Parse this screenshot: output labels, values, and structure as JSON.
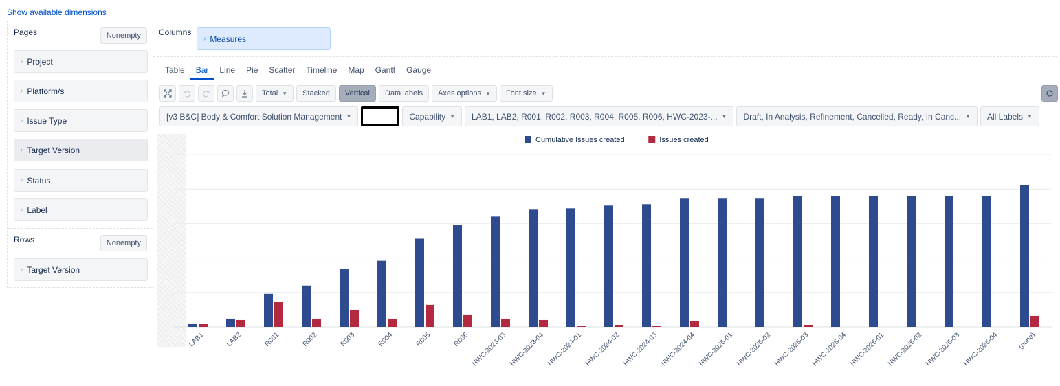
{
  "top_link": "Show available dimensions",
  "pages": {
    "title": "Pages",
    "nonempty_label": "Nonempty",
    "items": [
      {
        "label": "Project"
      },
      {
        "label": "Platform/s"
      },
      {
        "label": "Issue Type"
      },
      {
        "label": "Target Version"
      },
      {
        "label": "Status"
      },
      {
        "label": "Label"
      }
    ]
  },
  "rows": {
    "title": "Rows",
    "nonempty_label": "Nonempty",
    "items": [
      {
        "label": "Target Version"
      }
    ]
  },
  "columns": {
    "title": "Columns",
    "items": [
      {
        "label": "Measures"
      }
    ]
  },
  "tabs": [
    {
      "label": "Table",
      "active": false
    },
    {
      "label": "Bar",
      "active": true
    },
    {
      "label": "Line",
      "active": false
    },
    {
      "label": "Pie",
      "active": false
    },
    {
      "label": "Scatter",
      "active": false
    },
    {
      "label": "Timeline",
      "active": false
    },
    {
      "label": "Map",
      "active": false
    },
    {
      "label": "Gantt",
      "active": false
    },
    {
      "label": "Gauge",
      "active": false
    }
  ],
  "toolbar": {
    "expand_icon": "expand-icon",
    "undo_icon": "undo-icon",
    "redo_icon": "redo-icon",
    "comment_icon": "comment-icon",
    "download_icon": "download-icon",
    "total_label": "Total",
    "stacked_label": "Stacked",
    "vertical_label": "Vertical",
    "data_labels_label": "Data labels",
    "axes_options_label": "Axes options",
    "font_size_label": "Font size",
    "refresh_icon": "refresh-icon"
  },
  "filters": {
    "project": "[v3 B&C] Body & Comfort Solution Management",
    "platform": "",
    "issue_type": "Capability",
    "target_version": "LAB1, LAB2, R001, R002, R003, R004, R005, R006, HWC-2023-...",
    "status": "Draft, In Analysis, Refinement, Cancelled, Ready, In Canc...",
    "label": "All Labels"
  },
  "colors": {
    "cumulative": "#2f4b8f",
    "created": "#b3293f",
    "link": "#0052cc"
  },
  "chart_data": {
    "type": "bar",
    "categories": [
      "LAB1",
      "LAB2",
      "R001",
      "R002",
      "R003",
      "R004",
      "R005",
      "R006",
      "HWC-2023-03",
      "HWC-2023-04",
      "HWC-2024-01",
      "HWC-2024-02",
      "HWC-2024-03",
      "HWC-2024-04",
      "HWC-2025-01",
      "HWC-2025-02",
      "HWC-2025-03",
      "HWC-2025-04",
      "HWC-2026-01",
      "HWC-2026-02",
      "HWC-2026-03",
      "HWC-2026-04",
      "(none)"
    ],
    "series": [
      {
        "name": "Cumulative Issues created",
        "values": [
          2,
          6,
          24,
          30,
          42,
          48,
          64,
          74,
          80,
          85,
          86,
          88,
          89,
          93,
          93,
          93,
          95,
          95,
          95,
          95,
          95,
          95,
          103
        ]
      },
      {
        "name": "Issues created",
        "values": [
          2,
          5,
          18,
          6,
          12,
          6,
          16,
          9,
          6,
          5,
          1,
          1.5,
          1,
          4.5,
          0,
          0,
          1.5,
          0,
          0,
          0,
          0,
          0,
          8
        ]
      }
    ],
    "ylim": [
      0,
      125
    ],
    "grid": true,
    "legend": "top-center",
    "xlabel": "",
    "ylabel": ""
  }
}
